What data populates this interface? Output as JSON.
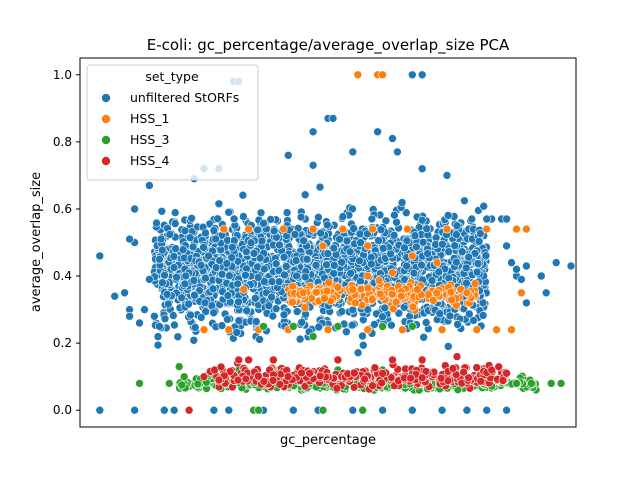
{
  "chart_data": {
    "type": "scatter",
    "title": "E-coli: gc_percentage/average_overlap_size PCA",
    "xlabel": "gc_percentage",
    "ylabel": "average_overlap_size",
    "xlim": [
      0,
      1
    ],
    "ylim": [
      -0.05,
      1.05
    ],
    "yticks": [
      0.0,
      0.2,
      0.4,
      0.6,
      0.8,
      1.0
    ],
    "ytick_labels": [
      "0.0",
      "0.2",
      "0.4",
      "0.6",
      "0.8",
      "1.0"
    ],
    "x_tick_labels_shown": false,
    "grid": false,
    "legend": {
      "title": "set_type",
      "position": "top-left"
    },
    "series": [
      {
        "name": "unfiltered StORFs",
        "color": "#1f77b4",
        "points": [
          [
            0.04,
            0.46
          ],
          [
            0.04,
            0.0
          ],
          [
            0.11,
            0.0
          ],
          [
            0.31,
            0.98
          ],
          [
            0.32,
            0.98
          ],
          [
            0.67,
            1.0
          ],
          [
            0.69,
            1.0
          ],
          [
            0.47,
            0.83
          ],
          [
            0.5,
            0.87
          ],
          [
            0.51,
            0.87
          ],
          [
            0.55,
            0.77
          ],
          [
            0.6,
            0.83
          ],
          [
            0.63,
            0.81
          ],
          [
            0.64,
            0.77
          ],
          [
            0.25,
            0.72
          ],
          [
            0.28,
            0.72
          ],
          [
            0.14,
            0.67
          ],
          [
            0.23,
            0.69
          ],
          [
            0.42,
            0.76
          ],
          [
            0.47,
            0.73
          ],
          [
            0.69,
            0.72
          ],
          [
            0.74,
            0.7
          ],
          [
            0.09,
            0.35
          ],
          [
            0.1,
            0.3
          ],
          [
            0.1,
            0.28
          ],
          [
            0.11,
            0.6
          ],
          [
            0.11,
            0.5
          ],
          [
            0.1,
            0.51
          ],
          [
            0.07,
            0.34
          ],
          [
            0.12,
            0.26
          ],
          [
            0.13,
            0.3
          ],
          [
            0.15,
            0.28
          ],
          [
            0.16,
            0.25
          ],
          [
            0.16,
            0.45
          ],
          [
            0.14,
            0.39
          ],
          [
            0.86,
            0.49
          ],
          [
            0.87,
            0.44
          ],
          [
            0.88,
            0.4
          ],
          [
            0.89,
            0.39
          ],
          [
            0.9,
            0.43
          ],
          [
            0.9,
            0.32
          ],
          [
            0.88,
            0.42
          ],
          [
            0.94,
            0.35
          ],
          [
            0.93,
            0.4
          ],
          [
            0.96,
            0.44
          ],
          [
            0.99,
            0.43
          ],
          [
            0.83,
            0.57
          ],
          [
            0.85,
            0.57
          ],
          [
            0.86,
            0.57
          ],
          [
            0.76,
            0.55
          ],
          [
            0.79,
            0.57
          ],
          [
            0.82,
            0.57
          ],
          [
            0.17,
            0.0
          ],
          [
            0.19,
            0.0
          ],
          [
            0.22,
            0.0
          ],
          [
            0.27,
            0.0
          ],
          [
            0.3,
            0.0
          ],
          [
            0.37,
            0.0
          ],
          [
            0.43,
            0.0
          ],
          [
            0.48,
            0.0
          ],
          [
            0.55,
            0.0
          ],
          [
            0.61,
            0.0
          ],
          [
            0.67,
            0.0
          ],
          [
            0.73,
            0.0
          ],
          [
            0.78,
            0.0
          ],
          [
            0.82,
            0.0
          ],
          [
            0.86,
            0.0
          ]
        ],
        "cloud": {
          "x_range": [
            0.15,
            0.82
          ],
          "center_y": 0.42,
          "spread_y": 0.11,
          "approx_count": 2200
        }
      },
      {
        "name": "HSS_1",
        "color": "#ff7f0e",
        "points": [
          [
            0.56,
            1.0
          ],
          [
            0.6,
            1.0
          ],
          [
            0.61,
            1.0
          ],
          [
            0.25,
            0.24
          ],
          [
            0.3,
            0.24
          ],
          [
            0.36,
            0.24
          ],
          [
            0.42,
            0.24
          ],
          [
            0.5,
            0.24
          ],
          [
            0.58,
            0.24
          ],
          [
            0.65,
            0.24
          ],
          [
            0.73,
            0.24
          ],
          [
            0.8,
            0.24
          ],
          [
            0.84,
            0.24
          ],
          [
            0.87,
            0.24
          ],
          [
            0.29,
            0.54
          ],
          [
            0.34,
            0.54
          ],
          [
            0.41,
            0.54
          ],
          [
            0.47,
            0.54
          ],
          [
            0.53,
            0.54
          ],
          [
            0.59,
            0.54
          ],
          [
            0.66,
            0.54
          ],
          [
            0.74,
            0.54
          ],
          [
            0.82,
            0.54
          ],
          [
            0.88,
            0.54
          ],
          [
            0.9,
            0.54
          ],
          [
            0.49,
            0.49
          ],
          [
            0.58,
            0.49
          ],
          [
            0.67,
            0.46
          ],
          [
            0.72,
            0.44
          ],
          [
            0.63,
            0.41
          ],
          [
            0.58,
            0.4
          ],
          [
            0.33,
            0.36
          ],
          [
            0.45,
            0.35
          ],
          [
            0.55,
            0.36
          ],
          [
            0.68,
            0.36
          ],
          [
            0.78,
            0.35
          ],
          [
            0.89,
            0.35
          ]
        ],
        "cloud": {
          "x_range": [
            0.42,
            0.8
          ],
          "center_y": 0.345,
          "spread_y": 0.025,
          "approx_count": 180
        }
      },
      {
        "name": "HSS_3",
        "color": "#2ca02c",
        "points": [
          [
            0.12,
            0.08
          ],
          [
            0.18,
            0.08
          ],
          [
            0.2,
            0.13
          ],
          [
            0.21,
            0.1
          ],
          [
            0.26,
            0.11
          ],
          [
            0.32,
            0.12
          ],
          [
            0.4,
            0.12
          ],
          [
            0.44,
            0.12
          ],
          [
            0.52,
            0.12
          ],
          [
            0.61,
            0.12
          ],
          [
            0.71,
            0.11
          ],
          [
            0.8,
            0.11
          ],
          [
            0.95,
            0.08
          ],
          [
            0.97,
            0.08
          ],
          [
            0.91,
            0.08
          ],
          [
            0.88,
            0.08
          ],
          [
            0.37,
            0.25
          ],
          [
            0.43,
            0.25
          ],
          [
            0.52,
            0.25
          ],
          [
            0.61,
            0.25
          ],
          [
            0.67,
            0.25
          ],
          [
            0.47,
            0.22
          ],
          [
            0.35,
            0.0
          ],
          [
            0.49,
            0.0
          ],
          [
            0.57,
            0.0
          ],
          [
            0.36,
            0.0
          ]
        ],
        "cloud": {
          "x_range": [
            0.2,
            0.92
          ],
          "center_y": 0.08,
          "spread_y": 0.012,
          "approx_count": 450
        }
      },
      {
        "name": "HSS_4",
        "color": "#d62728",
        "points": [
          [
            0.22,
            0.0
          ],
          [
            0.32,
            0.15
          ],
          [
            0.34,
            0.15
          ],
          [
            0.39,
            0.15
          ],
          [
            0.52,
            0.15
          ],
          [
            0.63,
            0.15
          ],
          [
            0.69,
            0.15
          ],
          [
            0.76,
            0.16
          ],
          [
            0.25,
            0.1
          ],
          [
            0.28,
            0.09
          ],
          [
            0.83,
            0.12
          ],
          [
            0.86,
            0.11
          ]
        ],
        "cloud": {
          "x_range": [
            0.26,
            0.86
          ],
          "center_y": 0.1,
          "spread_y": 0.02,
          "approx_count": 320
        }
      }
    ]
  }
}
